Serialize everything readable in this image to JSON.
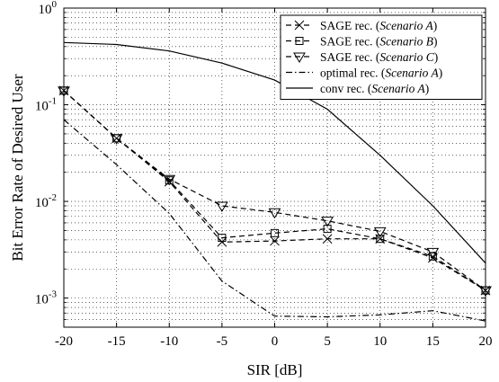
{
  "chart_data": {
    "type": "line",
    "xlabel": "SIR [dB]",
    "ylabel": "Bit Error Rate of Desired User",
    "xlim": [
      -20,
      20
    ],
    "ylim": [
      0.0005,
      1
    ],
    "yscale": "log",
    "grid": true,
    "legend_position": "top-right",
    "x_ticks": [
      "-20",
      "-15",
      "-10",
      "-5",
      "0",
      "5",
      "10",
      "15",
      "20"
    ],
    "y_ticks": [
      {
        "base": "10",
        "exp": "0"
      },
      {
        "base": "10",
        "exp": "-1"
      },
      {
        "base": "10",
        "exp": "-2"
      },
      {
        "base": "10",
        "exp": "-3"
      }
    ],
    "series": [
      {
        "name": "SAGE rec. (Scenario A)",
        "label_prefix": "SAGE rec. (",
        "label_italic": "Scenario A",
        "label_suffix": ")",
        "style": "dashed",
        "marker": "x",
        "color": "#000000",
        "x": [
          -20,
          -15,
          -10,
          -5,
          0,
          5,
          10,
          15,
          20
        ],
        "y": [
          0.14,
          0.045,
          0.016,
          0.0038,
          0.0039,
          0.0041,
          0.0041,
          0.0026,
          0.0012
        ]
      },
      {
        "name": "SAGE rec. (Scenario B)",
        "label_prefix": "SAGE rec. (",
        "label_italic": "Scenario B",
        "label_suffix": ")",
        "style": "dashed",
        "marker": "square",
        "color": "#000000",
        "x": [
          -20,
          -15,
          -10,
          -5,
          0,
          5,
          10,
          15,
          20
        ],
        "y": [
          0.14,
          0.045,
          0.0165,
          0.0042,
          0.0047,
          0.0052,
          0.0041,
          0.0027,
          0.0012
        ]
      },
      {
        "name": "SAGE rec. (Scenario C)",
        "label_prefix": "SAGE rec. (",
        "label_italic": "Scenario C",
        "label_suffix": ")",
        "style": "dashed",
        "marker": "triangle-down",
        "color": "#000000",
        "x": [
          -20,
          -15,
          -10,
          -5,
          0,
          5,
          10,
          15,
          20
        ],
        "y": [
          0.14,
          0.045,
          0.017,
          0.009,
          0.0077,
          0.0063,
          0.0049,
          0.003,
          0.0012
        ]
      },
      {
        "name": "optimal rec. (Scenario A)",
        "label_prefix": "optimal rec. (",
        "label_italic": "Scenario A",
        "label_suffix": ")",
        "style": "dashdot",
        "marker": "none",
        "color": "#000000",
        "x": [
          -20,
          -15,
          -10,
          -5,
          0,
          5,
          10,
          15,
          20
        ],
        "y": [
          0.07,
          0.024,
          0.0075,
          0.0015,
          0.00065,
          0.00064,
          0.00067,
          0.00074,
          0.00058
        ]
      },
      {
        "name": "conv rec. (Scenario A)",
        "label_prefix": "conv rec. (",
        "label_italic": "Scenario A",
        "label_suffix": ")",
        "style": "solid",
        "marker": "none",
        "color": "#000000",
        "x": [
          -20,
          -15,
          -10,
          -5,
          0,
          5,
          10,
          15,
          20
        ],
        "y": [
          0.44,
          0.42,
          0.36,
          0.27,
          0.18,
          0.09,
          0.03,
          0.009,
          0.0023
        ]
      }
    ]
  }
}
